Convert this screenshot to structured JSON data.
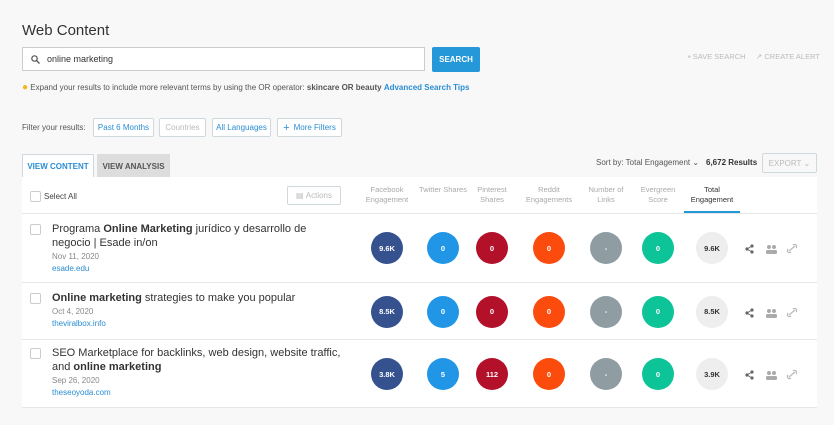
{
  "header": {
    "title": "Web Content"
  },
  "search": {
    "query": "online marketing",
    "button": "SEARCH",
    "save": "SAVE SEARCH",
    "alert": "CREATE ALERT"
  },
  "tip": {
    "text": "Expand your results to include more relevant terms by using the OR operator:",
    "example": "skincare OR beauty",
    "link": "Advanced Search Tips"
  },
  "filters": {
    "label": "Filter your results:",
    "buttons": [
      "Past 6 Months",
      "Countries",
      "All Languages",
      "More Filters"
    ]
  },
  "tabs": [
    "VIEW CONTENT",
    "VIEW ANALYSIS"
  ],
  "toolbar": {
    "sort": "Sort by: Total Engagement",
    "results": "6,672 Results",
    "export": "EXPORT"
  },
  "table": {
    "select_all": "Select All",
    "actions": "Actions",
    "columns": [
      {
        "label": "Facebook Engagement",
        "color": "#35528f"
      },
      {
        "label": "Twitter Shares",
        "color": "#2196e6"
      },
      {
        "label": "Pinterest Shares",
        "color": "#b3102a"
      },
      {
        "label": "Reddit Engagements",
        "color": "#fb4c0e"
      },
      {
        "label": "Number of Links",
        "color": "#8f9ca2"
      },
      {
        "label": "Evergreen Score",
        "color": "#0cc497"
      },
      {
        "label": "Total Engagement",
        "color": "#eeeeee"
      }
    ],
    "rows": [
      {
        "title": [
          {
            "text": "Programa ",
            "bold": false
          },
          {
            "text": "Online Marketing",
            "bold": true
          },
          {
            "text": " jurídico y desarrollo de negocio | Esade in/on",
            "bold": false
          }
        ],
        "date": "Nov 11, 2020",
        "domain": "esade.edu",
        "metrics": [
          "9.6K",
          "0",
          "0",
          "0",
          "-",
          "0",
          "9.6K"
        ]
      },
      {
        "title": [
          {
            "text": "Online marketing",
            "bold": true
          },
          {
            "text": " strategies to make you popular",
            "bold": false
          }
        ],
        "date": "Oct 4, 2020",
        "domain": "theviralbox.info",
        "metrics": [
          "8.5K",
          "0",
          "0",
          "0",
          "-",
          "0",
          "8.5K"
        ]
      },
      {
        "title": [
          {
            "text": "SEO Marketplace for backlinks, web design, website traffic, and ",
            "bold": false
          },
          {
            "text": "online marketing",
            "bold": true
          }
        ],
        "date": "Sep 26, 2020",
        "domain": "theseoyoda.com",
        "metrics": [
          "3.8K",
          "5",
          "112",
          "0",
          "-",
          "0",
          "3.9K"
        ]
      }
    ]
  }
}
